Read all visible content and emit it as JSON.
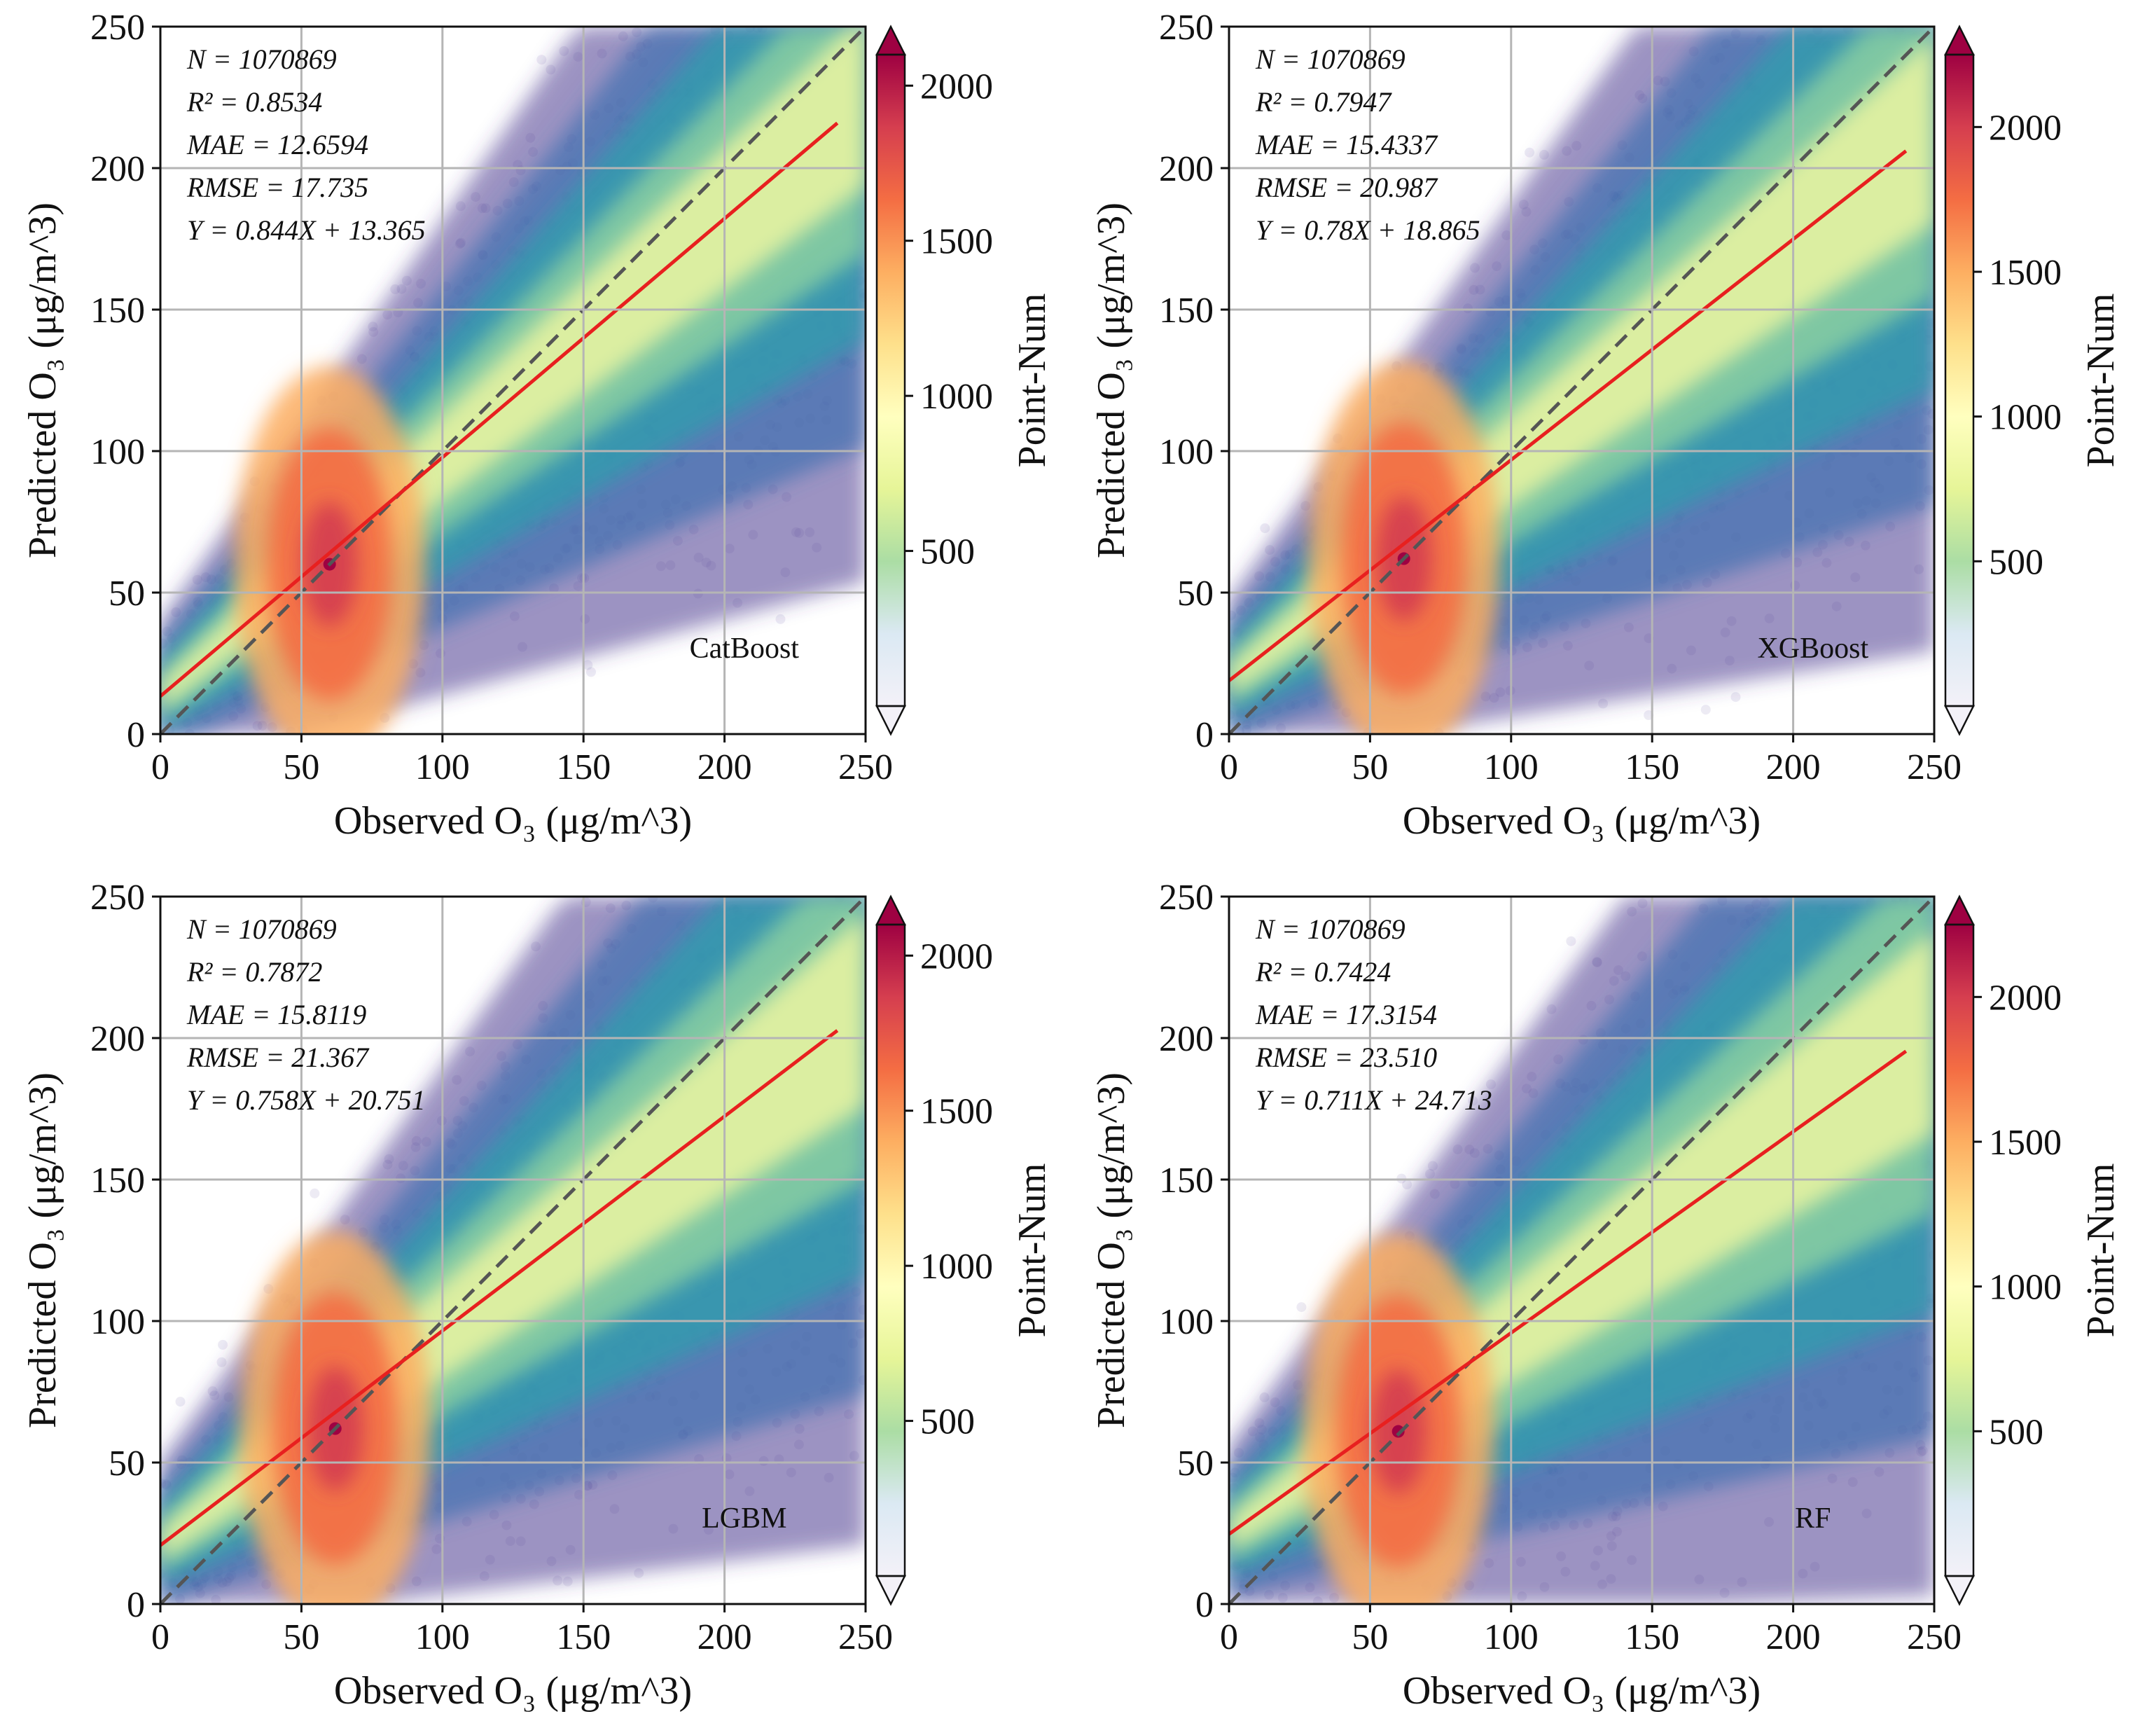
{
  "figure": {
    "colorbar_label": "Point-Num",
    "x_axis_label": "Observed O₃ (μg/m^3)",
    "y_axis_label": "Predicted O₃ (μg/m^3)"
  },
  "chart_data": [
    {
      "type": "scatter",
      "model": "CatBoost",
      "xlabel": "Observed O₃ (μg/m^3)",
      "ylabel": "Predicted O₃ (μg/m^3)",
      "xlim": [
        0,
        250
      ],
      "ylim": [
        0,
        250
      ],
      "xticks": [
        0,
        50,
        100,
        150,
        200,
        250
      ],
      "yticks": [
        0,
        50,
        100,
        150,
        200,
        250
      ],
      "grid": true,
      "stats": [
        "N = 1070869",
        "R² = 0.8534",
        "MAE = 12.6594",
        "RMSE = 17.735",
        "Y = 0.844X + 13.365"
      ],
      "fit": {
        "slope": 0.844,
        "intercept": 13.365,
        "x_range": [
          0,
          240
        ],
        "color": "#e8201f"
      },
      "identity_line": {
        "color": "#555555",
        "style": "dashed"
      },
      "density_peak": {
        "x": 60,
        "y": 60
      },
      "colorbar": {
        "label": "Point-Num",
        "ticks": [
          500,
          1000,
          1500,
          2000
        ],
        "min": 0,
        "max": 2100,
        "colormap": "Spectral_r"
      }
    },
    {
      "type": "scatter",
      "model": "XGBoost",
      "xlabel": "Observed O₃ (μg/m^3)",
      "ylabel": "Predicted O₃ (μg/m^3)",
      "xlim": [
        0,
        250
      ],
      "ylim": [
        0,
        250
      ],
      "xticks": [
        0,
        50,
        100,
        150,
        200,
        250
      ],
      "yticks": [
        0,
        50,
        100,
        150,
        200,
        250
      ],
      "grid": true,
      "stats": [
        "N = 1070869",
        "R² = 0.7947",
        "MAE = 15.4337",
        "RMSE = 20.987",
        "Y = 0.78X + 18.865"
      ],
      "fit": {
        "slope": 0.78,
        "intercept": 18.865,
        "x_range": [
          0,
          240
        ],
        "color": "#e8201f"
      },
      "identity_line": {
        "color": "#555555",
        "style": "dashed"
      },
      "density_peak": {
        "x": 62,
        "y": 62
      },
      "colorbar": {
        "label": "Point-Num",
        "ticks": [
          500,
          1000,
          1500,
          2000
        ],
        "min": 0,
        "max": 2250,
        "colormap": "Spectral_r"
      }
    },
    {
      "type": "scatter",
      "model": "LGBM",
      "xlabel": "Observed O₃ (μg/m^3)",
      "ylabel": "Predicted O₃ (μg/m^3)",
      "xlim": [
        0,
        250
      ],
      "ylim": [
        0,
        250
      ],
      "xticks": [
        0,
        50,
        100,
        150,
        200,
        250
      ],
      "yticks": [
        0,
        50,
        100,
        150,
        200,
        250
      ],
      "grid": true,
      "stats": [
        "N = 1070869",
        "R² = 0.7872",
        "MAE = 15.8119",
        "RMSE = 21.367",
        "Y = 0.758X + 20.751"
      ],
      "fit": {
        "slope": 0.758,
        "intercept": 20.751,
        "x_range": [
          0,
          240
        ],
        "color": "#e8201f"
      },
      "identity_line": {
        "color": "#555555",
        "style": "dashed"
      },
      "density_peak": {
        "x": 62,
        "y": 62
      },
      "colorbar": {
        "label": "Point-Num",
        "ticks": [
          500,
          1000,
          1500,
          2000
        ],
        "min": 0,
        "max": 2100,
        "colormap": "Spectral_r"
      }
    },
    {
      "type": "scatter",
      "model": "RF",
      "xlabel": "Observed O₃ (μg/m^3)",
      "ylabel": "Predicted O₃ (μg/m^3)",
      "xlim": [
        0,
        250
      ],
      "ylim": [
        0,
        250
      ],
      "xticks": [
        0,
        50,
        100,
        150,
        200,
        250
      ],
      "yticks": [
        0,
        50,
        100,
        150,
        200,
        250
      ],
      "grid": true,
      "stats": [
        "N = 1070869",
        "R² = 0.7424",
        "MAE = 17.3154",
        "RMSE = 23.510",
        "Y = 0.711X + 24.713"
      ],
      "fit": {
        "slope": 0.711,
        "intercept": 24.713,
        "x_range": [
          0,
          240
        ],
        "color": "#e8201f"
      },
      "identity_line": {
        "color": "#555555",
        "style": "dashed"
      },
      "density_peak": {
        "x": 60,
        "y": 61
      },
      "colorbar": {
        "label": "Point-Num",
        "ticks": [
          500,
          1000,
          1500,
          2000
        ],
        "min": 0,
        "max": 2250,
        "colormap": "Spectral_r"
      }
    }
  ]
}
